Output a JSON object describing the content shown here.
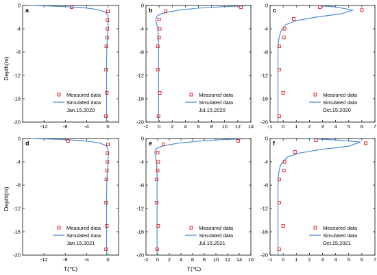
{
  "figure": {
    "ylabel": "Depth(m)",
    "xlabel": "T(℃)",
    "measured_color": "#e0141e",
    "simulated_color": "#4a8ad6"
  },
  "chart_data": [
    {
      "type": "line",
      "panel": "a",
      "date": "Jan.15,2020",
      "legend": [
        "Measured data",
        "Simulated data"
      ],
      "xlim": [
        -16,
        2
      ],
      "xticks": [
        -12,
        -8,
        -4,
        0
      ],
      "ylim": [
        -20,
        0
      ],
      "yticks": [
        0,
        -4,
        -8,
        -12,
        -16,
        -20
      ],
      "measured": [
        [
          -6.8,
          -0.3
        ],
        [
          0,
          -1
        ],
        [
          -0.1,
          -2.5
        ],
        [
          -0.1,
          -4
        ],
        [
          -0.15,
          -5.5
        ],
        [
          -0.3,
          -7
        ],
        [
          -0.35,
          -11
        ],
        [
          -0.2,
          -15
        ],
        [
          -0.35,
          -19
        ]
      ],
      "simulated": [
        [
          -14.5,
          0
        ],
        [
          -11,
          -0.1
        ],
        [
          -8,
          -0.2
        ],
        [
          -5,
          -0.35
        ],
        [
          -3,
          -0.55
        ],
        [
          -1.5,
          -0.8
        ],
        [
          -0.6,
          -1.1
        ],
        [
          -0.1,
          -1.5
        ],
        [
          0.05,
          -2.2
        ],
        [
          0.05,
          -3.2
        ],
        [
          -0.05,
          -5
        ],
        [
          -0.2,
          -7
        ],
        [
          -0.25,
          -10
        ],
        [
          -0.25,
          -15
        ],
        [
          -0.25,
          -20
        ]
      ]
    },
    {
      "type": "line",
      "panel": "b",
      "date": "Jul.15,2020",
      "legend": [
        "Measured data",
        "Simulated data"
      ],
      "xlim": [
        -2,
        14
      ],
      "xticks": [
        -2,
        0,
        2,
        4,
        6,
        8,
        10,
        12,
        14
      ],
      "ylim": [
        -20,
        0
      ],
      "yticks": [
        0,
        -4,
        -8,
        -12,
        -16,
        -20
      ],
      "measured": [
        [
          12.5,
          -0.3
        ],
        [
          1,
          -1
        ],
        [
          0,
          -2.4
        ],
        [
          0.1,
          -4
        ],
        [
          0,
          -5.5
        ],
        [
          -0.2,
          -7
        ],
        [
          -0.2,
          -11
        ],
        [
          0.1,
          -15
        ],
        [
          -0.1,
          -19
        ]
      ],
      "simulated": [
        [
          13.5,
          -0.05
        ],
        [
          10,
          -0.2
        ],
        [
          6,
          -0.45
        ],
        [
          3,
          -0.8
        ],
        [
          1,
          -1.2
        ],
        [
          0.2,
          -1.5
        ],
        [
          -0.3,
          -1.8
        ],
        [
          -0.5,
          -2.3
        ],
        [
          -0.4,
          -3
        ],
        [
          -0.2,
          -4
        ],
        [
          -0.1,
          -6
        ],
        [
          -0.1,
          -10
        ],
        [
          -0.1,
          -20
        ]
      ]
    },
    {
      "type": "line",
      "panel": "c",
      "date": "Oct.15,2020",
      "legend": [
        "Measured data",
        "Simulated data"
      ],
      "xlim": [
        -1,
        7
      ],
      "xticks": [
        -1,
        0,
        1,
        2,
        3,
        4,
        5,
        6,
        7
      ],
      "ylim": [
        -20,
        0
      ],
      "yticks": [
        0,
        -4,
        -8,
        -12,
        -16,
        -20
      ],
      "measured": [
        [
          2.8,
          -0.3
        ],
        [
          6,
          -0.8
        ],
        [
          0.8,
          -2.3
        ],
        [
          0.1,
          -4
        ],
        [
          0.05,
          -5.5
        ],
        [
          -0.3,
          -7
        ],
        [
          -0.3,
          -11
        ],
        [
          0,
          -15
        ],
        [
          -0.3,
          -19
        ]
      ],
      "simulated": [
        [
          2.5,
          0
        ],
        [
          4,
          -0.25
        ],
        [
          5.3,
          -0.8
        ],
        [
          4.5,
          -1.4
        ],
        [
          2.5,
          -2
        ],
        [
          1,
          -2.6
        ],
        [
          0.2,
          -3.3
        ],
        [
          -0.2,
          -4.5
        ],
        [
          -0.35,
          -6
        ],
        [
          -0.4,
          -8
        ],
        [
          -0.4,
          -12
        ],
        [
          -0.4,
          -20
        ]
      ]
    },
    {
      "type": "line",
      "panel": "d",
      "date": "Jan.15,2021",
      "legend": [
        "Measured data",
        "Simulated data"
      ],
      "xlim": [
        -16,
        2
      ],
      "xticks": [
        -12,
        -8,
        -4,
        0
      ],
      "ylim": [
        -20,
        0
      ],
      "yticks": [
        0,
        -4,
        -8,
        -12,
        -16,
        -20
      ],
      "measured": [
        [
          -7.5,
          -0.4
        ],
        [
          0,
          -1
        ],
        [
          -0.1,
          -2.5
        ],
        [
          -0.1,
          -4
        ],
        [
          -0.2,
          -5.5
        ],
        [
          -0.3,
          -7
        ],
        [
          -0.35,
          -11
        ],
        [
          -0.2,
          -15
        ],
        [
          -0.35,
          -19
        ]
      ],
      "simulated": [
        [
          -14.5,
          0
        ],
        [
          -11,
          -0.1
        ],
        [
          -8,
          -0.2
        ],
        [
          -5,
          -0.35
        ],
        [
          -3,
          -0.55
        ],
        [
          -1.5,
          -0.8
        ],
        [
          -0.6,
          -1.1
        ],
        [
          -0.1,
          -1.5
        ],
        [
          0.05,
          -2.2
        ],
        [
          0.05,
          -3.2
        ],
        [
          -0.05,
          -5
        ],
        [
          -0.2,
          -7
        ],
        [
          -0.25,
          -10
        ],
        [
          -0.25,
          -15
        ],
        [
          -0.25,
          -20
        ]
      ]
    },
    {
      "type": "line",
      "panel": "e",
      "date": "Jul.15,2021",
      "legend": [
        "Measured data",
        "Simulated data"
      ],
      "xlim": [
        -2,
        16
      ],
      "xticks": [
        -2,
        0,
        2,
        4,
        6,
        8,
        10,
        12,
        14,
        16
      ],
      "ylim": [
        -20,
        0
      ],
      "yticks": [
        0,
        -4,
        -8,
        -12,
        -16,
        -20
      ],
      "measured": [
        [
          13.8,
          -0.4
        ],
        [
          1,
          -1
        ],
        [
          0,
          -2.4
        ],
        [
          0.1,
          -4
        ],
        [
          0,
          -5.5
        ],
        [
          -0.2,
          -7
        ],
        [
          -0.2,
          -11
        ],
        [
          0.1,
          -15
        ],
        [
          -0.1,
          -19
        ]
      ],
      "simulated": [
        [
          14.8,
          -0.05
        ],
        [
          11,
          -0.2
        ],
        [
          7,
          -0.45
        ],
        [
          3.5,
          -0.8
        ],
        [
          1.2,
          -1.2
        ],
        [
          0.2,
          -1.5
        ],
        [
          -0.3,
          -1.8
        ],
        [
          -0.5,
          -2.3
        ],
        [
          -0.4,
          -3
        ],
        [
          -0.2,
          -4
        ],
        [
          -0.1,
          -6
        ],
        [
          -0.1,
          -10
        ],
        [
          -0.1,
          -20
        ]
      ]
    },
    {
      "type": "line",
      "panel": "f",
      "date": "Oct.15,2021",
      "legend": [
        "Measured data",
        "Simulated data"
      ],
      "xlim": [
        -1,
        7
      ],
      "xticks": [
        -1,
        0,
        1,
        2,
        3,
        4,
        5,
        6,
        7
      ],
      "ylim": [
        -20,
        0
      ],
      "yticks": [
        0,
        -4,
        -8,
        -12,
        -16,
        -20
      ],
      "measured": [
        [
          2.5,
          -0.3
        ],
        [
          6.3,
          -0.8
        ],
        [
          0.9,
          -2.3
        ],
        [
          0.1,
          -4
        ],
        [
          0.05,
          -5.5
        ],
        [
          -0.3,
          -7
        ],
        [
          -0.3,
          -11
        ],
        [
          0,
          -15
        ],
        [
          -0.3,
          -19
        ]
      ],
      "simulated": [
        [
          2,
          0
        ],
        [
          4,
          -0.25
        ],
        [
          5.9,
          -0.6
        ],
        [
          5,
          -1.3
        ],
        [
          2.8,
          -1.9
        ],
        [
          1.2,
          -2.5
        ],
        [
          0.3,
          -3.2
        ],
        [
          -0.2,
          -4.5
        ],
        [
          -0.35,
          -6
        ],
        [
          -0.4,
          -8
        ],
        [
          -0.4,
          -12
        ],
        [
          -0.4,
          -20
        ]
      ]
    }
  ]
}
